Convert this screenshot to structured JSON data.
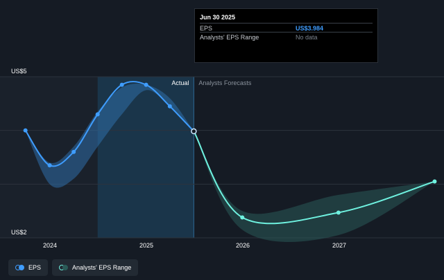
{
  "tooltip": {
    "date": "Jun 30 2025",
    "rows": [
      {
        "label": "EPS",
        "value": "US$3.984"
      },
      {
        "label": "Analysts' EPS Range",
        "value": "No data"
      }
    ]
  },
  "regions": {
    "actual_label": "Actual",
    "forecast_label": "Analysts Forecasts"
  },
  "legend": {
    "eps_label": "EPS",
    "range_label": "Analysts' EPS Range"
  },
  "colors": {
    "background": "#151b24",
    "eps_line": "#3f9dff",
    "forecast_line": "#6ff2e0",
    "range_fill": "#2a5a57",
    "actual_shade": "#1b3850"
  },
  "chart_data": {
    "type": "line",
    "x_ticks": [
      "2024",
      "2025",
      "2026",
      "2027"
    ],
    "y_ticks": [
      {
        "value": 5,
        "label": "US$5"
      },
      {
        "value": 2,
        "label": "US$2"
      }
    ],
    "ylim": [
      2,
      5
    ],
    "x_range": [
      "2023-09-30",
      "2027-12-31"
    ],
    "grid": true,
    "series": [
      {
        "name": "EPS",
        "role": "actual",
        "points": [
          {
            "x": "2023-09-30",
            "y": 4.0
          },
          {
            "x": "2023-12-31",
            "y": 3.35
          },
          {
            "x": "2024-03-31",
            "y": 3.6
          },
          {
            "x": "2024-06-30",
            "y": 4.3
          },
          {
            "x": "2024-09-30",
            "y": 4.85
          },
          {
            "x": "2024-12-31",
            "y": 4.85
          },
          {
            "x": "2025-03-31",
            "y": 4.45
          },
          {
            "x": "2025-06-30",
            "y": 3.984
          }
        ]
      },
      {
        "name": "EPS",
        "role": "forecast",
        "points": [
          {
            "x": "2025-06-30",
            "y": 3.984
          },
          {
            "x": "2025-12-31",
            "y": 2.38
          },
          {
            "x": "2026-12-31",
            "y": 2.47
          },
          {
            "x": "2027-12-31",
            "y": 3.05
          }
        ]
      },
      {
        "name": "Analysts' EPS Range",
        "role": "range",
        "upper": [
          {
            "x": "2023-09-30",
            "y": 4.0
          },
          {
            "x": "2023-12-31",
            "y": 3.4
          },
          {
            "x": "2024-03-31",
            "y": 3.7
          },
          {
            "x": "2024-06-30",
            "y": 4.35
          },
          {
            "x": "2024-09-30",
            "y": 4.8
          },
          {
            "x": "2024-12-31",
            "y": 4.85
          },
          {
            "x": "2025-03-31",
            "y": 4.6
          },
          {
            "x": "2025-06-30",
            "y": 3.984
          },
          {
            "x": "2025-12-31",
            "y": 2.5
          },
          {
            "x": "2026-12-31",
            "y": 2.8
          },
          {
            "x": "2027-12-31",
            "y": 3.05
          }
        ],
        "lower": [
          {
            "x": "2023-09-30",
            "y": 4.0
          },
          {
            "x": "2023-12-31",
            "y": 3.0
          },
          {
            "x": "2024-03-31",
            "y": 3.1
          },
          {
            "x": "2024-06-30",
            "y": 3.7
          },
          {
            "x": "2024-09-30",
            "y": 4.3
          },
          {
            "x": "2024-12-31",
            "y": 4.75
          },
          {
            "x": "2025-03-31",
            "y": 4.45
          },
          {
            "x": "2025-06-30",
            "y": 3.984
          },
          {
            "x": "2025-12-31",
            "y": 2.15
          },
          {
            "x": "2026-12-31",
            "y": 2.05
          },
          {
            "x": "2027-12-31",
            "y": 3.05
          }
        ]
      }
    ],
    "divider_date": "2025-06-30",
    "shaded_start": "2024-06-30"
  }
}
